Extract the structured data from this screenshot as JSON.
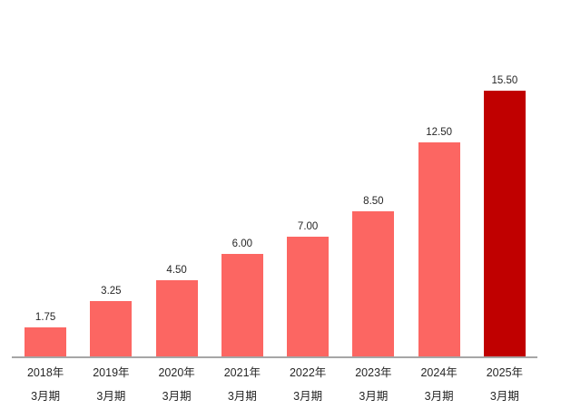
{
  "chart_data": {
    "type": "bar",
    "title": "",
    "xlabel": "",
    "ylabel": "",
    "ylim": [
      0,
      16.5
    ],
    "grid": false,
    "legend": "none",
    "categories": [
      [
        "2018年",
        "3月期"
      ],
      [
        "2019年",
        "3月期"
      ],
      [
        "2020年",
        "3月期"
      ],
      [
        "2021年",
        "3月期"
      ],
      [
        "2022年",
        "3月期"
      ],
      [
        "2023年",
        "3月期"
      ],
      [
        "2024年",
        "3月期"
      ],
      [
        "2025年",
        "3月期"
      ]
    ],
    "values": [
      1.75,
      3.25,
      4.5,
      6.0,
      7.0,
      8.5,
      12.5,
      15.5
    ],
    "value_labels": [
      "1.75",
      "3.25",
      "4.50",
      "6.00",
      "7.00",
      "8.50",
      "12.50",
      "15.50"
    ],
    "bar_color": "#FC6662",
    "highlight_color": "#C00000",
    "highlight_index": 7,
    "axis_line_color": "#A6A6A6",
    "label_color": "#262626"
  }
}
